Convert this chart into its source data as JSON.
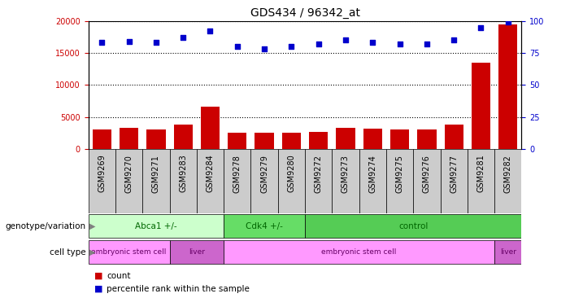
{
  "title": "GDS434 / 96342_at",
  "samples": [
    "GSM9269",
    "GSM9270",
    "GSM9271",
    "GSM9283",
    "GSM9284",
    "GSM9278",
    "GSM9279",
    "GSM9280",
    "GSM9272",
    "GSM9273",
    "GSM9274",
    "GSM9275",
    "GSM9276",
    "GSM9277",
    "GSM9281",
    "GSM9282"
  ],
  "counts": [
    3100,
    3350,
    3150,
    3850,
    6600,
    2600,
    2550,
    2600,
    2650,
    3400,
    3200,
    3100,
    3150,
    3850,
    13500,
    19500
  ],
  "percentiles": [
    83,
    84,
    83,
    87,
    92,
    80,
    78,
    80,
    82,
    85,
    83,
    82,
    82,
    85,
    95,
    99
  ],
  "ylim_left": [
    0,
    20000
  ],
  "ylim_right": [
    0,
    100
  ],
  "yticks_left": [
    0,
    5000,
    10000,
    15000,
    20000
  ],
  "yticks_right": [
    0,
    25,
    50,
    75,
    100
  ],
  "bar_color": "#cc0000",
  "dot_color": "#0000cc",
  "genotype_groups": [
    {
      "label": "Abca1 +/-",
      "start": 0,
      "end": 4,
      "color": "#ccffcc"
    },
    {
      "label": "Cdk4 +/-",
      "start": 5,
      "end": 7,
      "color": "#66dd66"
    },
    {
      "label": "control",
      "start": 8,
      "end": 15,
      "color": "#55cc55"
    }
  ],
  "celltype_groups": [
    {
      "label": "embryonic stem cell",
      "start": 0,
      "end": 2,
      "color": "#ff99ff"
    },
    {
      "label": "liver",
      "start": 3,
      "end": 4,
      "color": "#cc66cc"
    },
    {
      "label": "embryonic stem cell",
      "start": 5,
      "end": 14,
      "color": "#ff99ff"
    },
    {
      "label": "liver",
      "start": 15,
      "end": 15,
      "color": "#cc66cc"
    }
  ],
  "legend_count_color": "#cc0000",
  "legend_percentile_color": "#0000cc",
  "bg_color": "#ffffff",
  "grid_color": "#000000",
  "tick_fontsize": 7,
  "title_fontsize": 10,
  "bar_width": 0.7,
  "label_gray": "#cccccc",
  "geno_text_color": "#006600",
  "cell_text_color": "#660066"
}
